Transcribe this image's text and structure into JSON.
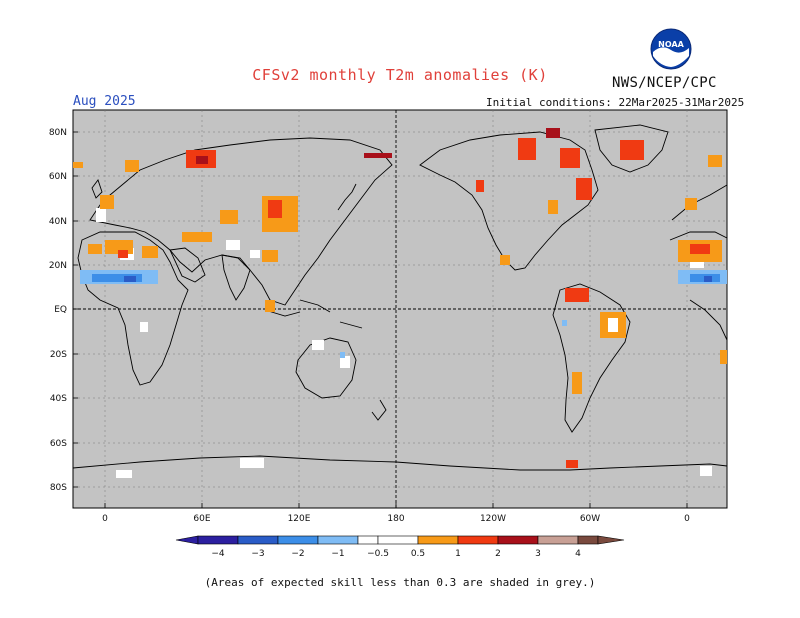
{
  "header": {
    "title": "CFSv2 monthly T2m anomalies (K)",
    "agency": "NWS/NCEP/CPC",
    "month": "Aug 2025",
    "initial_conditions": "Initial conditions: 22Mar2025-31Mar2025",
    "logo_text": "NOAA"
  },
  "map": {
    "lat_labels": [
      "80N",
      "60N",
      "40N",
      "20N",
      "EQ",
      "20S",
      "40S",
      "60S",
      "80S"
    ],
    "lon_labels": [
      "0",
      "60E",
      "120E",
      "180",
      "120W",
      "60W",
      "0"
    ],
    "land_color": "#c3c3c3",
    "ocean_color": "#ffffff",
    "grid_color": "#666666"
  },
  "colorbar": {
    "labels": [
      "−4",
      "−3",
      "−2",
      "−1",
      "−0.5",
      "0.5",
      "1",
      "2",
      "3",
      "4"
    ],
    "colors": [
      "#2c1fa0",
      "#2a5cc7",
      "#3c8ee8",
      "#7fbcf5",
      "#ffffff",
      "#f79a18",
      "#f03a12",
      "#a8101a",
      "#c8a095",
      "#7a4a3e"
    ]
  },
  "footnote": "(Areas of expected skill less than 0.3 are shaded in grey.)"
}
